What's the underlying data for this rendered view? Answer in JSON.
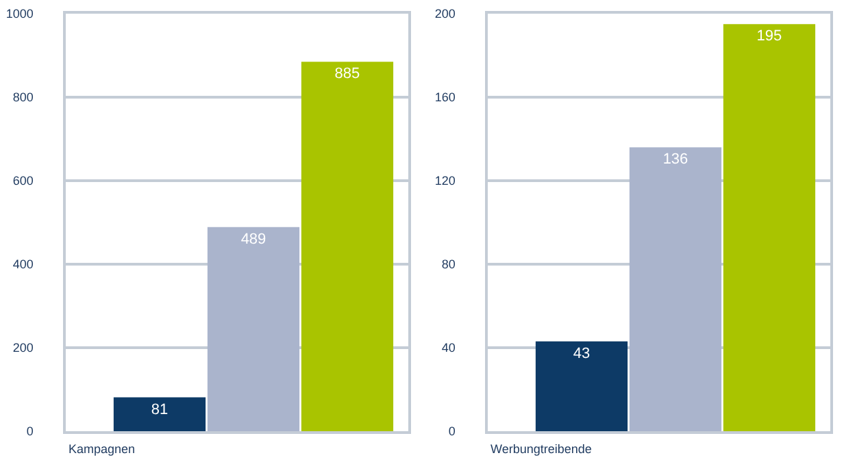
{
  "chart_data": [
    {
      "type": "bar",
      "xlabel": "Kampagnen",
      "categories": [
        null,
        null,
        null
      ],
      "values": [
        81,
        489,
        885
      ],
      "colors": [
        "#0d3a66",
        "#aab4cc",
        "#a9c400"
      ],
      "ylim": [
        0,
        1000
      ],
      "yticks": [
        0,
        200,
        400,
        600,
        800,
        1000
      ],
      "grid": "y",
      "data_labels": true,
      "tick_labels": "y"
    },
    {
      "type": "bar",
      "xlabel": "Werbungtreibende",
      "categories": [
        null,
        null,
        null
      ],
      "values": [
        43,
        136,
        195
      ],
      "colors": [
        "#0d3a66",
        "#aab4cc",
        "#a9c400"
      ],
      "ylim": [
        0,
        200
      ],
      "yticks": [
        0,
        40,
        80,
        120,
        160,
        200
      ],
      "grid": "y",
      "data_labels": true,
      "tick_labels": "y"
    }
  ]
}
